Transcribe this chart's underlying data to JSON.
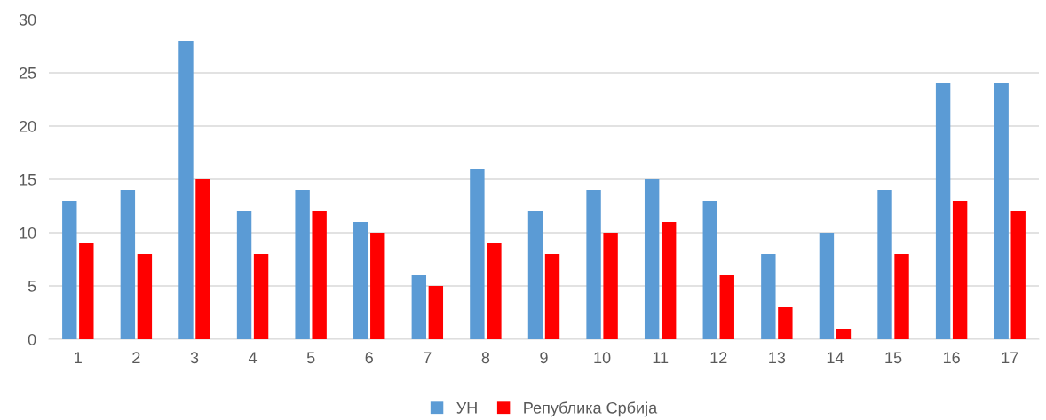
{
  "chart_data": {
    "type": "bar",
    "categories": [
      "1",
      "2",
      "3",
      "4",
      "5",
      "6",
      "7",
      "8",
      "9",
      "10",
      "11",
      "12",
      "13",
      "14",
      "15",
      "16",
      "17"
    ],
    "series": [
      {
        "name": "УН",
        "color": "#5b9bd5",
        "values": [
          13,
          14,
          28,
          12,
          14,
          11,
          6,
          16,
          12,
          14,
          15,
          13,
          8,
          10,
          14,
          24,
          24
        ]
      },
      {
        "name": "Република Србија",
        "color": "#ff0000",
        "values": [
          9,
          8,
          15,
          8,
          12,
          10,
          5,
          9,
          8,
          10,
          11,
          6,
          3,
          1,
          8,
          13,
          12
        ]
      }
    ],
    "ylim": [
      0,
      30
    ],
    "yticks": [
      0,
      5,
      10,
      15,
      20,
      25,
      30
    ],
    "grid": "y",
    "legend": "bottom"
  }
}
